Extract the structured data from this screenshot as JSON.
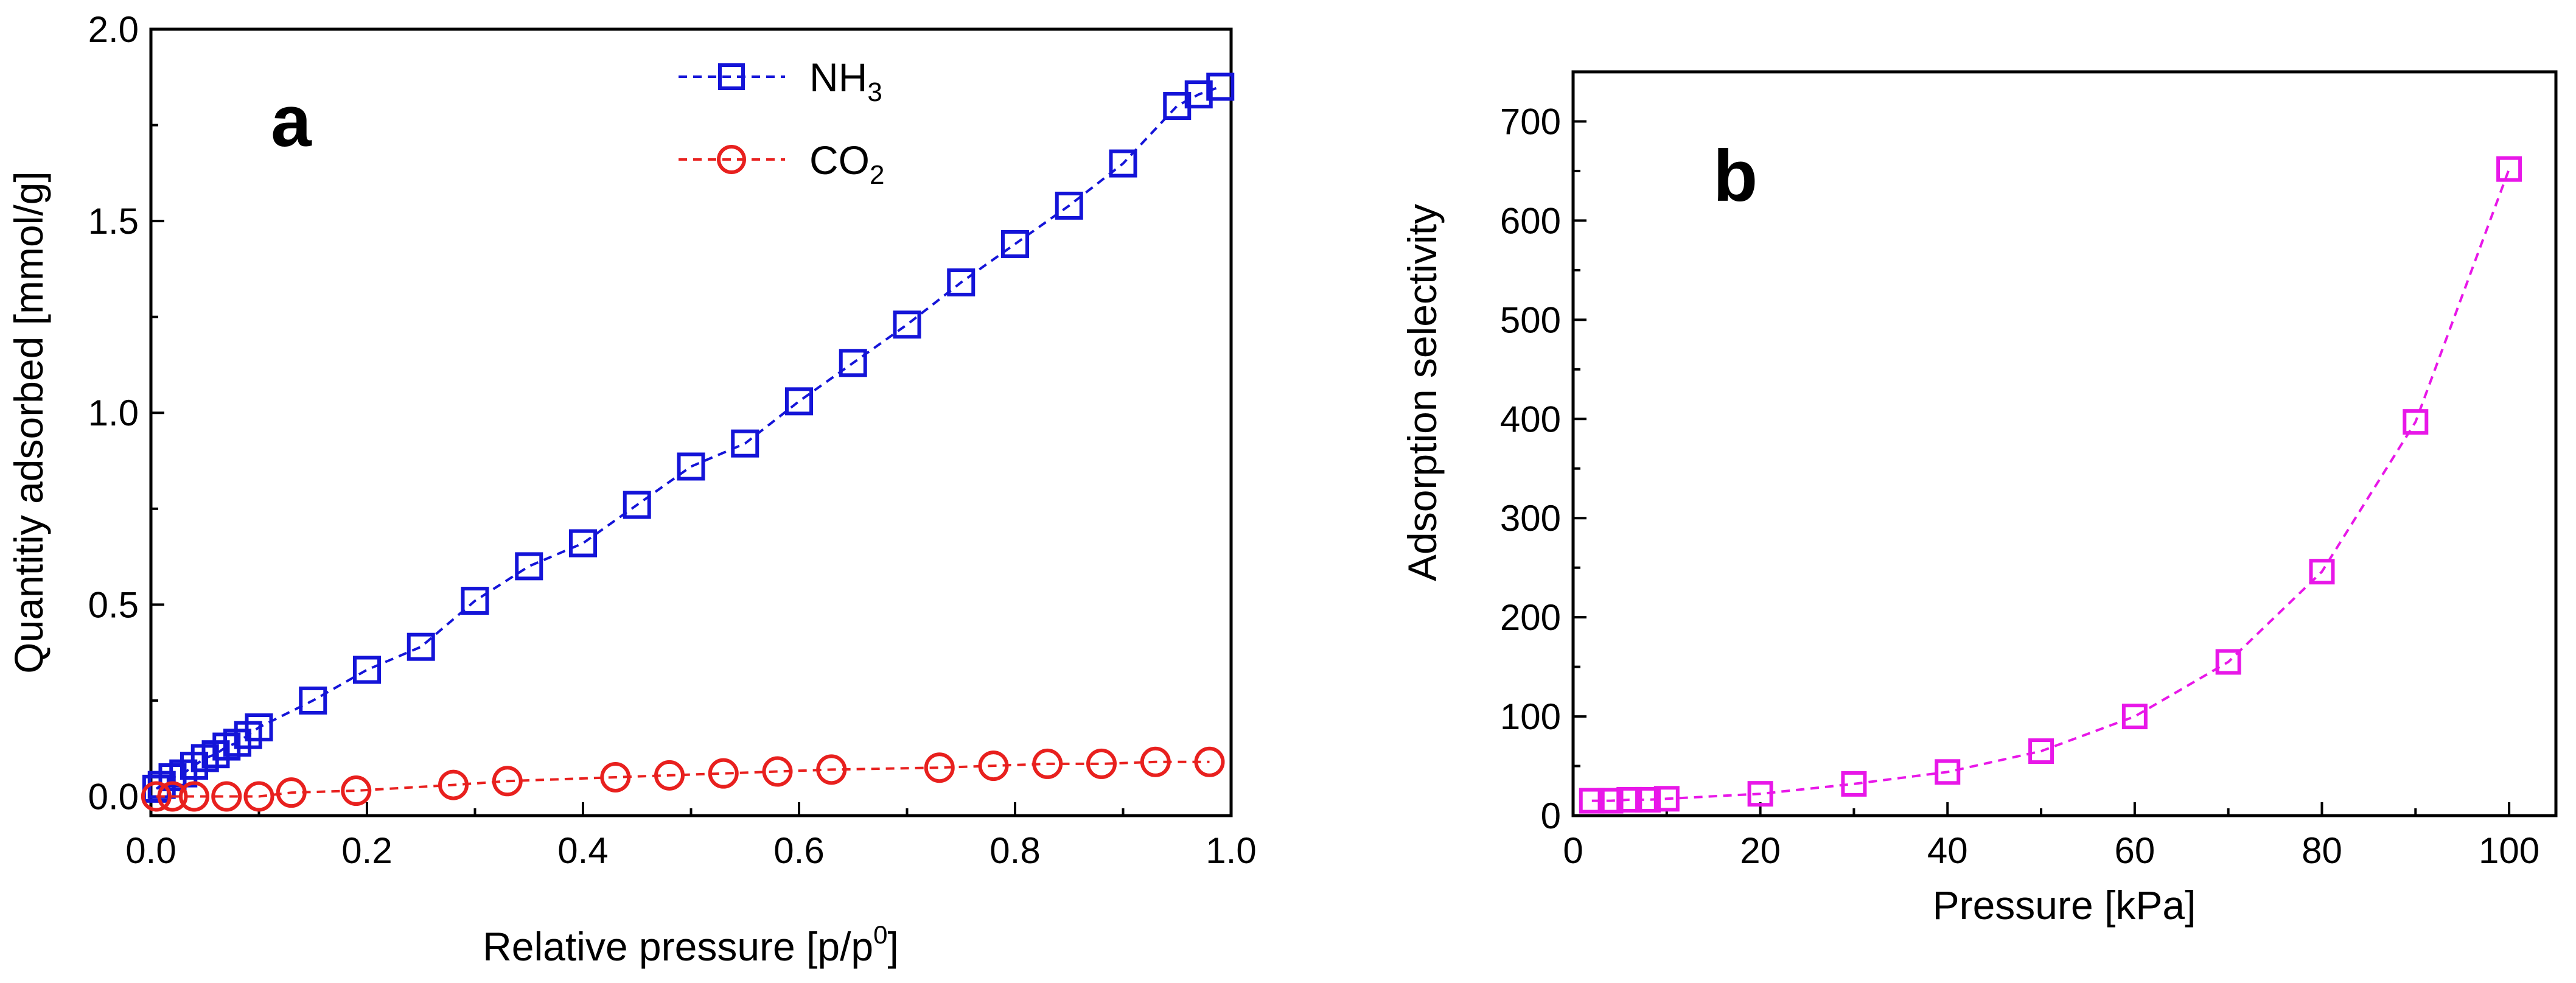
{
  "chart_data": [
    {
      "panel": "a",
      "type": "line",
      "label": "a",
      "xlabel": "Relative pressure [p/p",
      "xlabel_sup": "0",
      "xlabel_end": "]",
      "ylabel": "Quantitiy adsorbed [mmol/g]",
      "xlim": [
        0.0,
        1.0
      ],
      "ylim": [
        -0.05,
        2.0
      ],
      "xticks": [
        "0.0",
        "0.2",
        "0.4",
        "0.6",
        "0.8",
        "1.0"
      ],
      "yticks": [
        "0.0",
        "0.5",
        "1.0",
        "1.5",
        "2.0"
      ],
      "grid": false,
      "legend_position": "top-center",
      "series": [
        {
          "name": "NH",
          "sub": "3",
          "color": "#1414d8",
          "marker": "square",
          "line": "dashed",
          "x": [
            0.005,
            0.01,
            0.02,
            0.03,
            0.04,
            0.05,
            0.06,
            0.07,
            0.08,
            0.09,
            0.1,
            0.15,
            0.2,
            0.25,
            0.3,
            0.35,
            0.4,
            0.45,
            0.5,
            0.55,
            0.6,
            0.65,
            0.7,
            0.75,
            0.8,
            0.85,
            0.9,
            0.95,
            0.97,
            0.99
          ],
          "y": [
            0.02,
            0.03,
            0.05,
            0.06,
            0.08,
            0.1,
            0.11,
            0.13,
            0.14,
            0.16,
            0.18,
            0.25,
            0.33,
            0.39,
            0.51,
            0.6,
            0.66,
            0.76,
            0.86,
            0.92,
            1.03,
            1.13,
            1.23,
            1.34,
            1.44,
            1.54,
            1.65,
            1.8,
            1.83,
            1.85
          ]
        },
        {
          "name": "CO",
          "sub": "2",
          "color": "#e8201e",
          "marker": "circle",
          "line": "dashed",
          "x": [
            0.005,
            0.02,
            0.04,
            0.07,
            0.1,
            0.13,
            0.19,
            0.28,
            0.33,
            0.43,
            0.48,
            0.53,
            0.58,
            0.63,
            0.73,
            0.78,
            0.83,
            0.88,
            0.93,
            0.98
          ],
          "y": [
            0.0,
            0.0,
            0.0,
            0.0,
            0.0,
            0.01,
            0.015,
            0.03,
            0.04,
            0.05,
            0.055,
            0.06,
            0.065,
            0.07,
            0.075,
            0.08,
            0.085,
            0.085,
            0.09,
            0.09
          ]
        }
      ]
    },
    {
      "panel": "b",
      "type": "line",
      "label": "b",
      "xlabel": "Pressure [kPa]",
      "ylabel": "Adsorption selectivity",
      "xlim": [
        0,
        105
      ],
      "ylim": [
        0,
        750
      ],
      "xticks": [
        "0",
        "20",
        "40",
        "60",
        "80",
        "100"
      ],
      "yticks": [
        "0",
        "100",
        "200",
        "300",
        "400",
        "500",
        "600",
        "700"
      ],
      "grid": false,
      "series": [
        {
          "name": "selectivity",
          "color": "#e817e8",
          "marker": "square",
          "line": "dashed",
          "x": [
            2,
            4,
            6,
            8,
            10,
            20,
            30,
            40,
            50,
            60,
            70,
            80,
            90,
            100
          ],
          "y": [
            15,
            15,
            16,
            16,
            17,
            22,
            32,
            44,
            65,
            100,
            155,
            246,
            397,
            652
          ]
        }
      ]
    }
  ]
}
